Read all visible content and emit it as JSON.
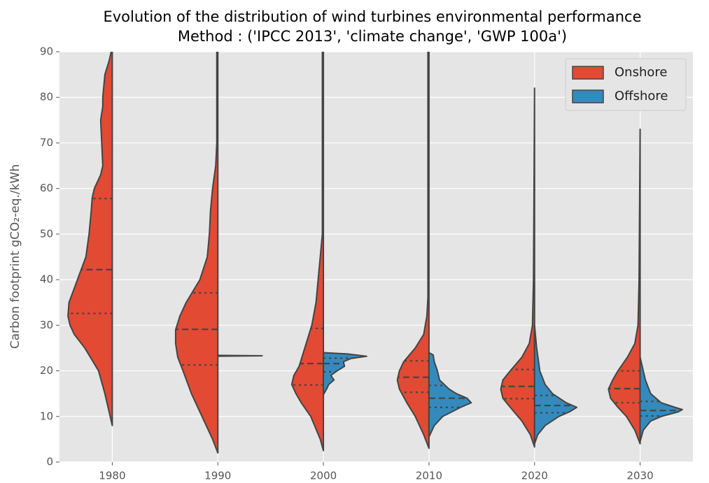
{
  "chart_data": {
    "type": "violin",
    "title": "Evolution of the distribution of wind turbines environmental performance",
    "subtitle": "Method : ('IPCC 2013', 'climate change', 'GWP 100a')",
    "y_label": "Carbon footprint gCO₂-eq./kWh",
    "categories": [
      "1980",
      "1990",
      "2000",
      "2010",
      "2020",
      "2030"
    ],
    "ylim": [
      0,
      90
    ],
    "yticks": [
      0,
      10,
      20,
      30,
      40,
      50,
      60,
      70,
      80,
      90
    ],
    "grid": true,
    "legend": "upper right",
    "series": [
      {
        "name": "Onshore",
        "color": "#e24a33",
        "violins": [
          {
            "levels": [
              8,
              10,
              15,
              20,
              25,
              28,
              30,
              32,
              35,
              40,
              45,
              50,
              55,
              58,
              60,
              63,
              65,
              70,
              75,
              78,
              80,
              85,
              88,
              90
            ],
            "density": [
              0,
              0.02,
              0.07,
              0.13,
              0.26,
              0.36,
              0.4,
              0.42,
              0.41,
              0.33,
              0.25,
              0.22,
              0.2,
              0.19,
              0.17,
              0.11,
              0.09,
              0.1,
              0.11,
              0.09,
              0.09,
              0.07,
              0.03,
              0.01
            ],
            "quartiles": [
              32.6,
              42.2,
              57.8
            ]
          },
          {
            "levels": [
              2,
              5,
              10,
              15,
              20,
              23,
              26,
              29,
              32,
              35,
              40,
              45,
              50,
              55,
              60,
              65,
              70,
              80,
              90
            ],
            "density": [
              0,
              0.05,
              0.15,
              0.25,
              0.33,
              0.38,
              0.4,
              0.4,
              0.36,
              0.3,
              0.17,
              0.1,
              0.08,
              0.07,
              0.05,
              0.02,
              0.01,
              0.01,
              0.01
            ],
            "quartiles": [
              21.3,
              29.1,
              37.1
            ]
          },
          {
            "levels": [
              2.5,
              5,
              10,
              13,
              15,
              17,
              19,
              21,
              24,
              27,
              30,
              35,
              40,
              45,
              50,
              60,
              90
            ],
            "density": [
              0,
              0.03,
              0.12,
              0.21,
              0.26,
              0.3,
              0.28,
              0.23,
              0.19,
              0.15,
              0.11,
              0.07,
              0.05,
              0.03,
              0.01,
              0.01,
              0.01
            ],
            "quartiles": [
              16.9,
              21.6,
              29.3
            ]
          },
          {
            "levels": [
              3,
              6,
              10,
              13,
              16,
              18,
              20,
              22,
              25,
              28,
              32,
              36,
              40,
              90
            ],
            "density": [
              0,
              0.05,
              0.13,
              0.21,
              0.28,
              0.3,
              0.28,
              0.24,
              0.13,
              0.05,
              0.02,
              0.01,
              0.01,
              0.01
            ],
            "quartiles": [
              15.3,
              18.6,
              22.2
            ]
          },
          {
            "levels": [
              3.3,
              6,
              9,
              12,
              14,
              16,
              18,
              20,
              23,
              26,
              30,
              40,
              82
            ],
            "density": [
              0,
              0.04,
              0.12,
              0.23,
              0.3,
              0.32,
              0.3,
              0.23,
              0.12,
              0.05,
              0.02,
              0.01,
              0
            ],
            "quartiles": [
              13.9,
              16.6,
              20.3
            ]
          },
          {
            "levels": [
              4,
              7,
              10,
              12,
              14,
              16,
              18,
              20,
              23,
              26,
              30,
              40,
              73
            ],
            "density": [
              0,
              0.05,
              0.13,
              0.21,
              0.28,
              0.3,
              0.26,
              0.21,
              0.12,
              0.05,
              0.02,
              0.01,
              0
            ],
            "quartiles": [
              13.0,
              16.1,
              20.0
            ]
          }
        ]
      },
      {
        "name": "Offshore",
        "color": "#348abd",
        "violins": [
          null,
          {
            "levels": [
              23.2,
              23.3,
              23.4
            ],
            "density": [
              0,
              0.42,
              0
            ],
            "quartiles": null
          },
          {
            "levels": [
              14.8,
              16,
              17,
              18,
              19,
              20,
              21,
              22,
              22.7,
              23.2,
              23.7,
              24
            ],
            "density": [
              0,
              0.03,
              0.05,
              0.1,
              0.07,
              0.13,
              0.2,
              0.19,
              0.26,
              0.41,
              0.23,
              0
            ],
            "quartiles": [
              19.8,
              21.6,
              22.8
            ]
          },
          {
            "levels": [
              5.5,
              8,
              10,
              12,
              13,
              14,
              15,
              16,
              18,
              20,
              22,
              23.5,
              24
            ],
            "density": [
              0,
              0.05,
              0.13,
              0.3,
              0.4,
              0.36,
              0.26,
              0.19,
              0.1,
              0.08,
              0.05,
              0.04,
              0
            ],
            "quartiles": [
              12.0,
              14.0,
              16.8
            ]
          },
          {
            "levels": [
              4,
              6,
              8,
              10,
              11,
              12,
              13,
              15,
              17,
              20,
              25,
              30
            ],
            "density": [
              0,
              0.03,
              0.1,
              0.23,
              0.33,
              0.4,
              0.3,
              0.17,
              0.1,
              0.05,
              0.02,
              0
            ],
            "quartiles": [
              10.8,
              12.4,
              14.6
            ]
          },
          {
            "levels": [
              4.5,
              7,
              9,
              10,
              11,
              11.5,
              12,
              13,
              15,
              18,
              20,
              23
            ],
            "density": [
              0,
              0.03,
              0.1,
              0.2,
              0.36,
              0.4,
              0.33,
              0.2,
              0.1,
              0.05,
              0.03,
              0
            ],
            "quartiles": [
              10.1,
              11.3,
              13.3
            ]
          }
        ]
      }
    ]
  }
}
